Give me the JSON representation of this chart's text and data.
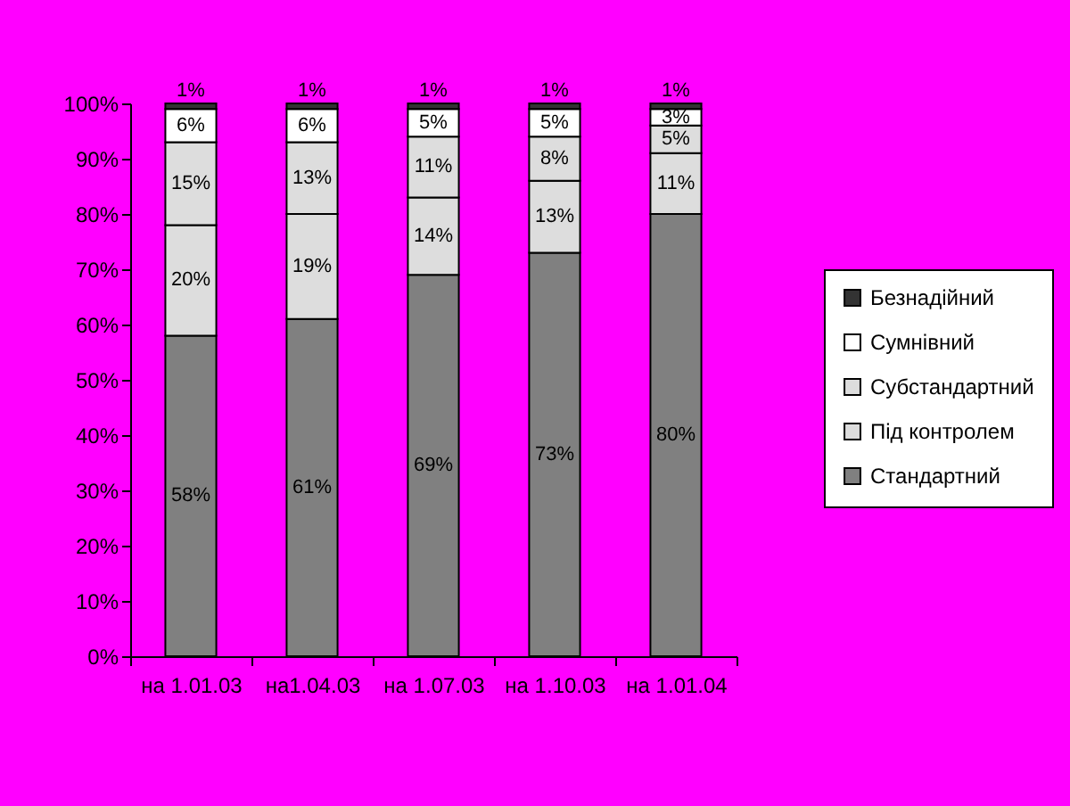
{
  "chart_data": {
    "type": "bar",
    "stacked": true,
    "categories": [
      "на 1.01.03",
      "на1.04.03",
      "на 1.07.03",
      "на 1.10.03",
      "на 1.01.04"
    ],
    "series": [
      {
        "name": "Стандартний",
        "color": "#808080",
        "values": [
          58,
          61,
          69,
          73,
          80
        ],
        "value_labels": [
          "58%",
          "61%",
          "69%",
          "73%",
          "80%"
        ]
      },
      {
        "name": "Під контролем",
        "color": "#dddddd",
        "values": [
          20,
          19,
          14,
          13,
          11
        ],
        "value_labels": [
          "20%",
          "19%",
          "14%",
          "13%",
          "11%"
        ]
      },
      {
        "name": "Субстандартний",
        "color": "#dddddd",
        "values": [
          15,
          13,
          11,
          8,
          5
        ],
        "value_labels": [
          "15%",
          "13%",
          "11%",
          "8%",
          "5%"
        ]
      },
      {
        "name": "Сумнівний",
        "color": "#ffffff",
        "values": [
          6,
          6,
          5,
          5,
          3
        ],
        "value_labels": [
          "6%",
          "6%",
          "5%",
          "5%",
          "3%"
        ]
      },
      {
        "name": "Безнадійний",
        "color": "#333333",
        "values": [
          1,
          1,
          1,
          1,
          1
        ],
        "value_labels": [
          "1%",
          "1%",
          "1%",
          "1%",
          "1%"
        ]
      }
    ],
    "ylim": [
      0,
      100
    ],
    "yticks": [
      {
        "value": 0,
        "label": "0%"
      },
      {
        "value": 10,
        "label": "10%"
      },
      {
        "value": 20,
        "label": "20%"
      },
      {
        "value": 30,
        "label": "30%"
      },
      {
        "value": 40,
        "label": "40%"
      },
      {
        "value": 50,
        "label": "50%"
      },
      {
        "value": 60,
        "label": "60%"
      },
      {
        "value": 70,
        "label": "70%"
      },
      {
        "value": 80,
        "label": "80%"
      },
      {
        "value": 90,
        "label": "90%"
      },
      {
        "value": 100,
        "label": "100%"
      }
    ],
    "legend": "right"
  }
}
